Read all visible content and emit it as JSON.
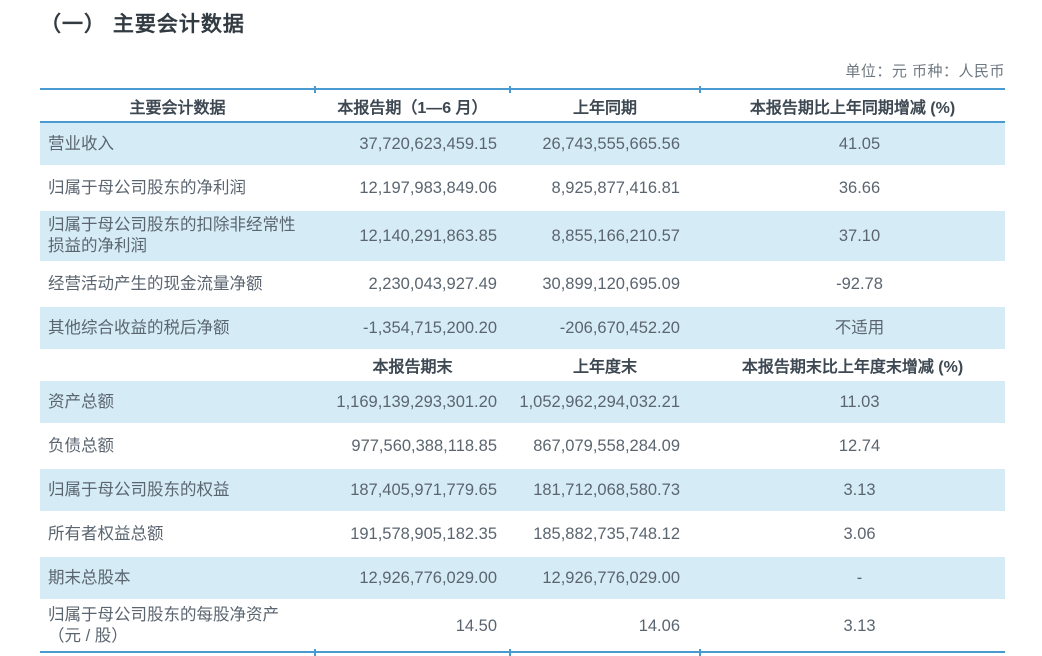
{
  "title": "（一） 主要会计数据",
  "unit_note": "单位：元  币种：人民币",
  "colors": {
    "accent_line": "#4a9ad2",
    "row_highlight": "#d5ecf7",
    "title_text": "#323a42",
    "body_text": "#5b6570"
  },
  "table": {
    "headers_period": {
      "col1": "主要会计数据",
      "col2": "本报告期（1—6 月）",
      "col3": "上年同期",
      "col4": "本报告期比上年同期增减 (%)"
    },
    "rows_period": [
      {
        "label": "营业收入",
        "current": "37,720,623,459.15",
        "prior": "26,743,555,665.56",
        "change": "41.05"
      },
      {
        "label": "归属于母公司股东的净利润",
        "current": "12,197,983,849.06",
        "prior": "8,925,877,416.81",
        "change": "36.66"
      },
      {
        "label": "归属于母公司股东的扣除非经常性损益的净利润",
        "current": "12,140,291,863.85",
        "prior": "8,855,166,210.57",
        "change": "37.10"
      },
      {
        "label": "经营活动产生的现金流量净额",
        "current": "2,230,043,927.49",
        "prior": "30,899,120,695.09",
        "change": "-92.78"
      },
      {
        "label": "其他综合收益的税后净额",
        "current": "-1,354,715,200.20",
        "prior": "-206,670,452.20",
        "change": "不适用"
      }
    ],
    "headers_end": {
      "col1": "",
      "col2": "本报告期末",
      "col3": "上年度末",
      "col4": "本报告期末比上年度末增减 (%)"
    },
    "rows_end": [
      {
        "label": "资产总额",
        "current": "1,169,139,293,301.20",
        "prior": "1,052,962,294,032.21",
        "change": "11.03"
      },
      {
        "label": "负债总额",
        "current": "977,560,388,118.85",
        "prior": "867,079,558,284.09",
        "change": "12.74"
      },
      {
        "label": "归属于母公司股东的权益",
        "current": "187,405,971,779.65",
        "prior": "181,712,068,580.73",
        "change": "3.13"
      },
      {
        "label": "所有者权益总额",
        "current": "191,578,905,182.35",
        "prior": "185,882,735,748.12",
        "change": "3.06"
      },
      {
        "label": "期末总股本",
        "current": "12,926,776,029.00",
        "prior": "12,926,776,029.00",
        "change": "-"
      },
      {
        "label": "归属于母公司股东的每股净资产（元 / 股）",
        "current": "14.50",
        "prior": "14.06",
        "change": "3.13"
      }
    ]
  }
}
